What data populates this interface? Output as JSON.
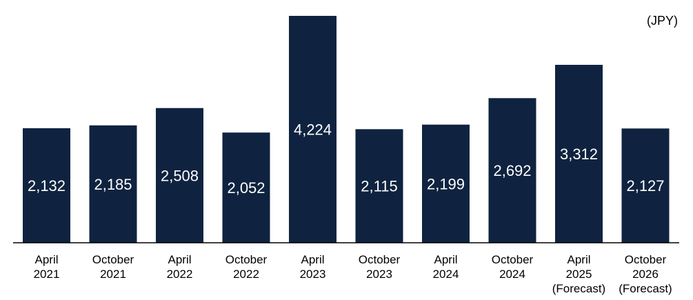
{
  "unit_label": "(JPY)",
  "chart_data": {
    "type": "bar",
    "categories": [
      [
        "April",
        "2021"
      ],
      [
        "October",
        "2021"
      ],
      [
        "April",
        "2022"
      ],
      [
        "October",
        "2022"
      ],
      [
        "April",
        "2023"
      ],
      [
        "October",
        "2023"
      ],
      [
        "April",
        "2024"
      ],
      [
        "October",
        "2024"
      ],
      [
        "April",
        "2025",
        "(Forecast)"
      ],
      [
        "October",
        "2026",
        "(Forecast)"
      ]
    ],
    "values": [
      2132,
      2185,
      2508,
      2052,
      4224,
      2115,
      2199,
      2692,
      3312,
      2127
    ],
    "value_labels": [
      "2,132",
      "2,185",
      "2,508",
      "2,052",
      "4,224",
      "2,115",
      "2,199",
      "2,692",
      "3,312",
      "2,127"
    ],
    "ylim": [
      0,
      4224
    ],
    "grid": false,
    "legend": "none",
    "bar_color": "#0f2340",
    "axis_color": "#000000"
  }
}
